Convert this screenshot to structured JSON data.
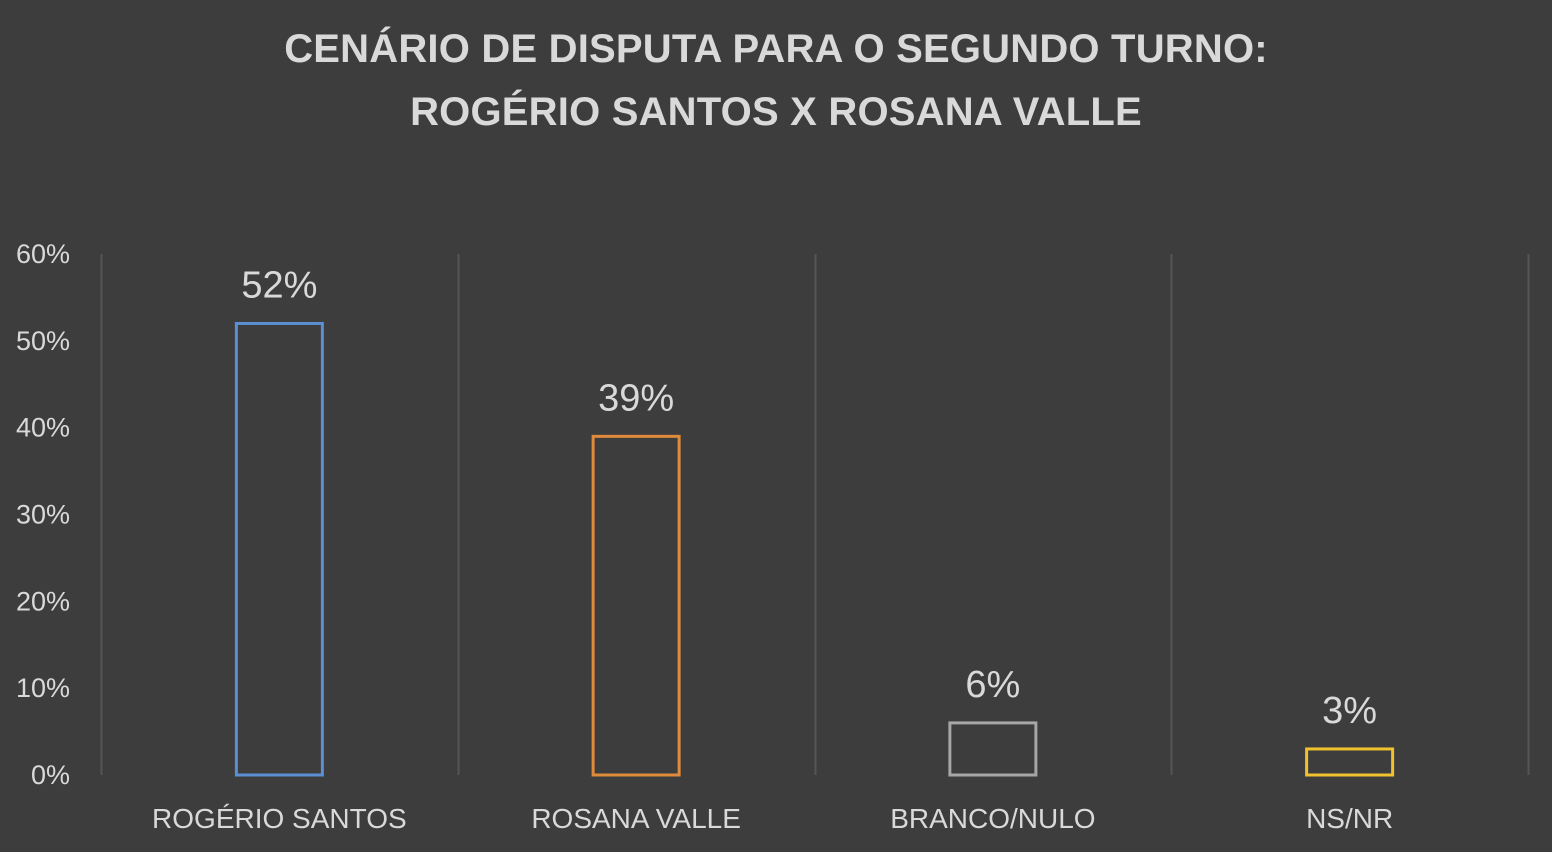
{
  "chart_data": {
    "type": "bar",
    "title": [
      "CENÁRIO DE DISPUTA PARA O SEGUNDO TURNO:",
      "ROGÉRIO SANTOS X ROSANA VALLE"
    ],
    "categories": [
      "ROGÉRIO SANTOS",
      "ROSANA VALLE",
      "BRANCO/NULO",
      "NS/NR"
    ],
    "values": [
      52,
      39,
      6,
      3
    ],
    "data_labels": [
      "52%",
      "39%",
      "6%",
      "3%"
    ],
    "colors": [
      "#5b8fd4",
      "#e08a3c",
      "#a6a6a6",
      "#f2c12e"
    ],
    "ylim": [
      0,
      60
    ],
    "yticks": [
      0,
      10,
      20,
      30,
      40,
      50,
      60
    ],
    "ytick_labels": [
      "0%",
      "10%",
      "20%",
      "30%",
      "40%",
      "50%",
      "60%"
    ],
    "xlabel": "",
    "ylabel": "",
    "grid": "vertical",
    "legend": "none",
    "bar_style": "outline"
  }
}
